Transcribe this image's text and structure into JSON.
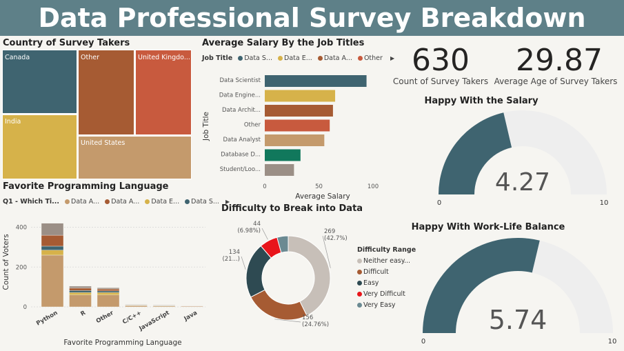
{
  "dashboard": {
    "title": "Data Professional Survey Breakdown",
    "banner_color": "#5e8088"
  },
  "kpis": {
    "count": {
      "value": "630",
      "label": "Count of Survey Takers"
    },
    "age": {
      "value": "29.87",
      "label": "Average Age of Survey Takers"
    }
  },
  "chart_data": [
    {
      "id": "country-treemap",
      "type": "treemap",
      "title": "Country of Survey Takers",
      "items": [
        {
          "label": "Canada",
          "color": "#3f6470"
        },
        {
          "label": "Other",
          "color": "#a65b33"
        },
        {
          "label": "United Kingdo...",
          "color": "#c85a3e"
        },
        {
          "label": "India",
          "color": "#d6b24a"
        },
        {
          "label": "United States",
          "color": "#c49a6c"
        }
      ]
    },
    {
      "id": "salary-bar",
      "type": "bar",
      "orientation": "horizontal",
      "title": "Average Salary By the Job Titles",
      "legend_title": "Job Title",
      "legend": [
        {
          "name": "Data S...",
          "color": "#3f6470"
        },
        {
          "name": "Data E...",
          "color": "#d6b24a"
        },
        {
          "name": "Data A...",
          "color": "#a65b33"
        },
        {
          "name": "Other",
          "color": "#c85a3e"
        }
      ],
      "categories": [
        "Data Scientist",
        "Data Engine...",
        "Data Archit...",
        "Other",
        "Data Analyst",
        "Database D...",
        "Student/Loo..."
      ],
      "values": [
        94,
        65,
        63,
        60,
        55,
        33,
        27
      ],
      "colors": [
        "#3f6470",
        "#d6b24a",
        "#a65b33",
        "#c85a3e",
        "#c49a6c",
        "#11785c",
        "#9b8f86"
      ],
      "xlabel": "Average Salary",
      "ylabel": "Job Title",
      "xticks": [
        0,
        50,
        100
      ],
      "xlim": [
        0,
        100
      ]
    },
    {
      "id": "language-stacked",
      "type": "bar",
      "stacked": true,
      "title": "Favorite Programming Language",
      "legend_title": "Q1 - Which Ti...",
      "legend": [
        {
          "name": "Data A...",
          "color": "#c49a6c"
        },
        {
          "name": "Data A...",
          "color": "#a65b33"
        },
        {
          "name": "Data E...",
          "color": "#d6b24a"
        },
        {
          "name": "Data S...",
          "color": "#3f6470"
        }
      ],
      "categories": [
        "Python",
        "R",
        "Other",
        "C/C++",
        "JavaScript",
        "Java"
      ],
      "series": [
        {
          "values": [
            260,
            60,
            60,
            6,
            5,
            3
          ],
          "color": "#c49a6c"
        },
        {
          "values": [
            25,
            12,
            12,
            2,
            1,
            0
          ],
          "color": "#d6b24a"
        },
        {
          "values": [
            20,
            10,
            8,
            2,
            1,
            0
          ],
          "color": "#3f6470"
        },
        {
          "values": [
            55,
            12,
            10,
            2,
            1,
            1
          ],
          "color": "#a65b33"
        },
        {
          "values": [
            60,
            10,
            6,
            1,
            1,
            0
          ],
          "color": "#9b8f86"
        }
      ],
      "ylabel": "Count of Voters",
      "xlabel": "Favorite Programming Language",
      "yticks": [
        0,
        200,
        400
      ],
      "ylim": [
        0,
        440
      ]
    },
    {
      "id": "difficulty-donut",
      "type": "pie",
      "donut": true,
      "title": "Difficulty to Break into Data",
      "legend_title": "Difficulty Range",
      "slices": [
        {
          "name": "Neither easy...",
          "value": 269,
          "label": "269",
          "pct": "(42.7%)",
          "color": "#c7bfb8"
        },
        {
          "name": "Difficult",
          "value": 156,
          "label": "156",
          "pct": "(24.76%)",
          "color": "#a65b33"
        },
        {
          "name": "Easy",
          "value": 134,
          "label": "134",
          "pct": "(21...)",
          "color": "#2e4a52"
        },
        {
          "name": "Very Difficult",
          "value": 44,
          "label": "44",
          "pct": "(6.98%)",
          "color": "#e8151b"
        },
        {
          "name": "Very Easy",
          "value": 27,
          "label": "",
          "pct": "",
          "color": "#6b8a92"
        }
      ]
    },
    {
      "id": "salary-gauge",
      "type": "gauge",
      "title": "Happy With the Salary",
      "value": 4.27,
      "value_label": "4.27",
      "min": 0,
      "max": 10,
      "min_label": "0",
      "max_label": "10",
      "color": "#3f6470",
      "track_color": "#eeeeee"
    },
    {
      "id": "worklife-gauge",
      "type": "gauge",
      "title": "Happy With Work-Life Balance",
      "value": 5.74,
      "value_label": "5.74",
      "min": 0,
      "max": 10,
      "min_label": "0",
      "max_label": "10",
      "color": "#3f6470",
      "track_color": "#eeeeee"
    }
  ]
}
